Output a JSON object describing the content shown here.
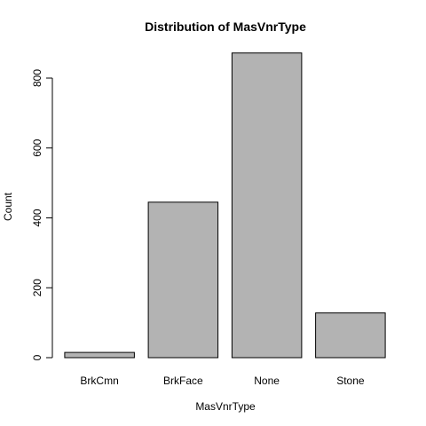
{
  "chart_data": {
    "type": "bar",
    "title": "Distribution of MasVnrType",
    "xlabel": "MasVnrType",
    "ylabel": "Count",
    "categories": [
      "BrkCmn",
      "BrkFace",
      "None",
      "Stone"
    ],
    "values": [
      15,
      445,
      872,
      128
    ],
    "ylim": [
      0,
      800
    ],
    "yticks": [
      0,
      200,
      400,
      600,
      800
    ],
    "grid": false,
    "bar_color": "#b3b3b3"
  }
}
